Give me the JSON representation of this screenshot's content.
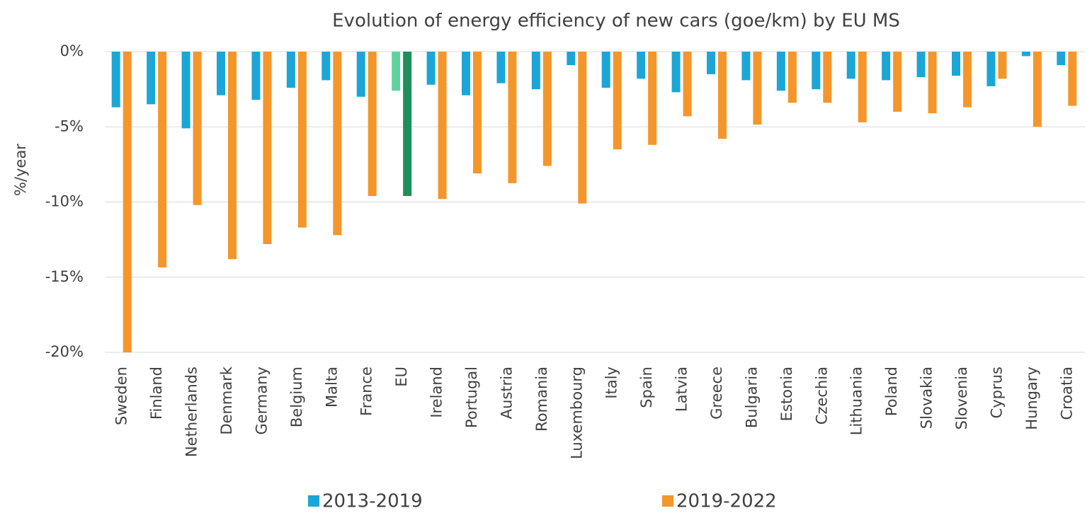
{
  "chart_data": {
    "type": "bar",
    "title": "Evolution of energy efficiency of new cars (goe/km) by EU MS",
    "y_label": "%/year",
    "categories": [
      "Sweden",
      "Finland",
      "Netherlands",
      "Denmark",
      "Germany",
      "Belgium",
      "Malta",
      "France",
      "EU",
      "Ireland",
      "Portugal",
      "Austria",
      "Romania",
      "Luxembourg",
      "Italy",
      "Spain",
      "Latvia",
      "Greece",
      "Bulgaria",
      "Estonia",
      "Czechia",
      "Lithuania",
      "Poland",
      "Slovakia",
      "Slovenia",
      "Cyprus",
      "Hungary",
      "Croatia"
    ],
    "series": [
      {
        "name": "2013-2019",
        "color": "#1ba6d8",
        "highlight_color": "#5ed3a0",
        "values": [
          -3.7,
          -3.5,
          -5.1,
          -2.9,
          -3.2,
          -2.4,
          -1.9,
          -3.0,
          -2.6,
          -2.2,
          -2.9,
          -2.1,
          -2.5,
          -0.9,
          -2.4,
          -1.8,
          -2.7,
          -1.5,
          -1.9,
          -2.6,
          -2.5,
          -1.8,
          -1.9,
          -1.7,
          -1.6,
          -2.3,
          -0.3,
          -0.9
        ]
      },
      {
        "name": "2019-2022",
        "color": "#f5962a",
        "highlight_color": "#1e8f5a",
        "values": [
          -20.0,
          -14.35,
          -10.2,
          -13.8,
          -12.8,
          -11.7,
          -12.2,
          -9.6,
          -9.6,
          -9.8,
          -8.1,
          -8.75,
          -7.6,
          -10.1,
          -6.5,
          -6.2,
          -4.3,
          -5.8,
          -4.85,
          -3.4,
          -3.4,
          -4.7,
          -4.0,
          -4.1,
          -3.7,
          -1.8,
          -5.0,
          -3.6
        ]
      }
    ],
    "highlight_category": "EU",
    "ylim": [
      -20,
      0
    ],
    "yticks": [
      {
        "value": -20,
        "label": "-20%"
      },
      {
        "value": -15,
        "label": "-15%"
      },
      {
        "value": -10,
        "label": "-10%"
      },
      {
        "value": -5,
        "label": "-5%"
      },
      {
        "value": 0,
        "label": "0%"
      }
    ],
    "grid": true,
    "legend": "bottom"
  }
}
